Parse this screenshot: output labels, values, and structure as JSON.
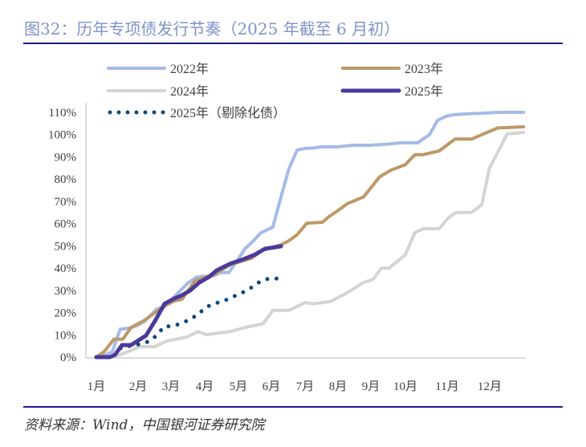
{
  "title": "图32：历年专项债发行节奏（2025 年截至 6 月初）",
  "source": "资料来源：Wind，中国银河证券研究院",
  "chart_data": {
    "type": "line",
    "title": "",
    "xlabel": "",
    "ylabel": "",
    "x_unit": "month",
    "x_tick_labels": [
      "1月",
      "2月",
      "3月",
      "4月",
      "5月",
      "6月",
      "7月",
      "8月",
      "9月",
      "10月",
      "11月",
      "12月"
    ],
    "y_tick_labels": [
      "0%",
      "10%",
      "20%",
      "30%",
      "40%",
      "50%",
      "60%",
      "70%",
      "80%",
      "90%",
      "100%",
      "110%"
    ],
    "ylim": [
      0,
      110
    ],
    "grid": false,
    "legend": "top",
    "series": [
      {
        "name": "2022年",
        "color": "#a4bbe6",
        "style": "solid",
        "points": [
          [
            1.0,
            0
          ],
          [
            1.22,
            0.7
          ],
          [
            1.45,
            2.5
          ],
          [
            1.67,
            12.6
          ],
          [
            1.9,
            13
          ],
          [
            2.12,
            14
          ],
          [
            2.35,
            16
          ],
          [
            2.69,
            21.6
          ],
          [
            2.91,
            22.7
          ],
          [
            3.13,
            26.3
          ],
          [
            3.36,
            30
          ],
          [
            3.58,
            33.5
          ],
          [
            3.81,
            36
          ],
          [
            4.03,
            36.4
          ],
          [
            4.26,
            36.4
          ],
          [
            4.48,
            38
          ],
          [
            4.71,
            38
          ],
          [
            4.93,
            43
          ],
          [
            5.16,
            48.7
          ],
          [
            5.38,
            52
          ],
          [
            5.61,
            55.9
          ],
          [
            5.94,
            58.4
          ],
          [
            6.17,
            72
          ],
          [
            6.39,
            84.7
          ],
          [
            6.62,
            93
          ],
          [
            6.84,
            93.8
          ],
          [
            7.07,
            94
          ],
          [
            7.29,
            94.5
          ],
          [
            7.74,
            94.5
          ],
          [
            8.19,
            95.2
          ],
          [
            8.64,
            95.2
          ],
          [
            9.09,
            95.6
          ],
          [
            9.54,
            96.3
          ],
          [
            9.99,
            96.3
          ],
          [
            10.33,
            100
          ],
          [
            10.55,
            106.4
          ],
          [
            10.78,
            108.2
          ],
          [
            11.0,
            108.9
          ],
          [
            11.34,
            109.3
          ],
          [
            11.79,
            109.6
          ],
          [
            12.24,
            110
          ],
          [
            12.96,
            110
          ]
        ]
      },
      {
        "name": "2023年",
        "color": "#bd9968",
        "style": "solid",
        "points": [
          [
            1.0,
            0
          ],
          [
            1.22,
            2.5
          ],
          [
            1.49,
            8
          ],
          [
            1.74,
            8
          ],
          [
            1.97,
            13.3
          ],
          [
            2.35,
            16.6
          ],
          [
            2.73,
            21
          ],
          [
            2.96,
            23.4
          ],
          [
            3.18,
            25.2
          ],
          [
            3.4,
            26
          ],
          [
            3.76,
            34.3
          ],
          [
            4.08,
            36
          ],
          [
            4.3,
            37.1
          ],
          [
            4.75,
            41.5
          ],
          [
            5.04,
            43
          ],
          [
            5.34,
            44.4
          ],
          [
            5.65,
            48
          ],
          [
            6.17,
            50.5
          ],
          [
            6.39,
            52.3
          ],
          [
            6.62,
            55
          ],
          [
            6.89,
            60.2
          ],
          [
            7.33,
            60.6
          ],
          [
            7.5,
            63
          ],
          [
            7.74,
            65.6
          ],
          [
            8.03,
            69
          ],
          [
            8.48,
            72
          ],
          [
            8.93,
            81
          ],
          [
            9.24,
            84
          ],
          [
            9.65,
            86.5
          ],
          [
            9.92,
            91
          ],
          [
            10.15,
            91
          ],
          [
            10.6,
            92.7
          ],
          [
            11.04,
            98
          ],
          [
            11.5,
            98
          ],
          [
            12.24,
            103
          ],
          [
            12.96,
            103.5
          ]
        ]
      },
      {
        "name": "2024年",
        "color": "#d4d4d4",
        "style": "solid",
        "points": [
          [
            1.0,
            0
          ],
          [
            1.6,
            0.7
          ],
          [
            1.97,
            3
          ],
          [
            2.2,
            4.7
          ],
          [
            2.64,
            4.7
          ],
          [
            2.96,
            7.2
          ],
          [
            3.54,
            9
          ],
          [
            3.85,
            11.5
          ],
          [
            4.08,
            10.1
          ],
          [
            4.75,
            11.5
          ],
          [
            5.27,
            13.7
          ],
          [
            5.67,
            15
          ],
          [
            5.94,
            21
          ],
          [
            6.39,
            21
          ],
          [
            6.84,
            24.5
          ],
          [
            7.1,
            24
          ],
          [
            7.56,
            25
          ],
          [
            8.03,
            29
          ],
          [
            8.48,
            33.5
          ],
          [
            8.75,
            35
          ],
          [
            8.98,
            40
          ],
          [
            9.2,
            40
          ],
          [
            9.65,
            46
          ],
          [
            9.92,
            56
          ],
          [
            10.15,
            57.7
          ],
          [
            10.6,
            57.7
          ],
          [
            10.84,
            62.4
          ],
          [
            11.07,
            65
          ],
          [
            11.5,
            65
          ],
          [
            11.79,
            68.5
          ],
          [
            12.0,
            84.7
          ],
          [
            12.5,
            100.3
          ],
          [
            12.96,
            101
          ]
        ]
      },
      {
        "name": "2025年",
        "color": "#4b3a9a",
        "style": "solid",
        "points": [
          [
            1.0,
            0
          ],
          [
            1.38,
            0
          ],
          [
            1.52,
            1
          ],
          [
            1.72,
            5.4
          ],
          [
            1.97,
            5.4
          ],
          [
            2.39,
            9.7
          ],
          [
            2.64,
            16.2
          ],
          [
            2.91,
            24
          ],
          [
            3.18,
            26.3
          ],
          [
            3.4,
            27.8
          ],
          [
            3.63,
            30
          ],
          [
            3.88,
            33.5
          ],
          [
            4.15,
            36
          ],
          [
            4.37,
            39
          ],
          [
            4.75,
            42
          ],
          [
            5.12,
            44
          ],
          [
            5.43,
            46
          ],
          [
            5.72,
            48.7
          ],
          [
            6.17,
            49.8
          ]
        ]
      },
      {
        "name": "2025年（剔除化债）",
        "color": "#0d4a7e",
        "style": "dotted",
        "points": [
          [
            1.0,
            0
          ],
          [
            1.29,
            0
          ],
          [
            1.52,
            1
          ],
          [
            1.72,
            4.7
          ],
          [
            1.97,
            5
          ],
          [
            2.26,
            6
          ],
          [
            2.5,
            7.2
          ],
          [
            2.71,
            10.1
          ],
          [
            2.89,
            13.7
          ],
          [
            3.16,
            14
          ],
          [
            3.43,
            15.5
          ],
          [
            3.67,
            17.3
          ],
          [
            3.88,
            19.8
          ],
          [
            4.1,
            22.7
          ],
          [
            4.35,
            24.2
          ],
          [
            4.62,
            25.6
          ],
          [
            4.87,
            27.4
          ],
          [
            5.12,
            29.2
          ],
          [
            5.36,
            31.4
          ],
          [
            5.58,
            33.9
          ],
          [
            5.83,
            35.3
          ],
          [
            6.1,
            35.3
          ]
        ]
      }
    ]
  }
}
